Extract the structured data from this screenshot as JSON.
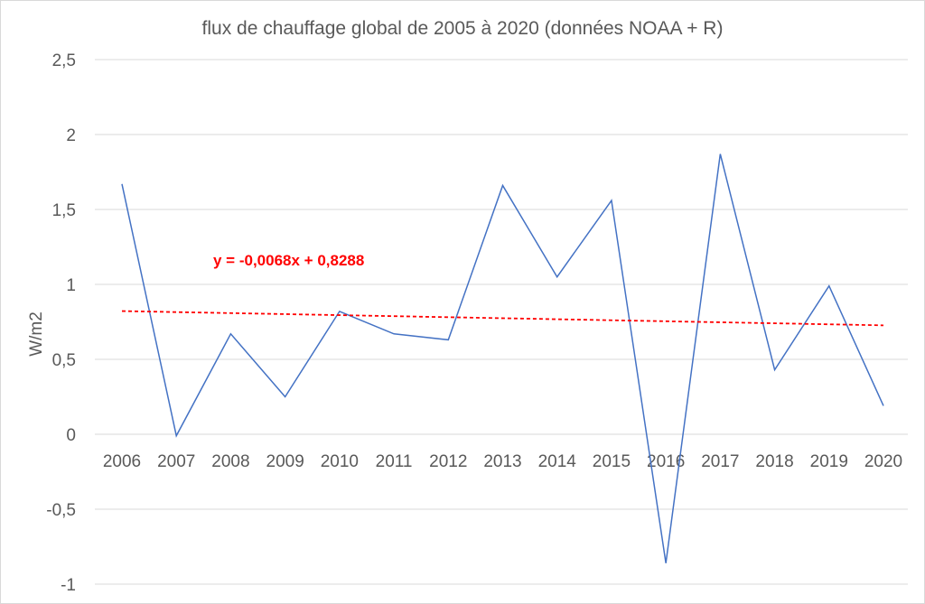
{
  "chart_data": {
    "type": "line",
    "title": "flux de chauffage global de 2005 à 2020 (données NOAA + R)",
    "xlabel": "",
    "ylabel": "W/m2",
    "categories": [
      "2006",
      "2007",
      "2008",
      "2009",
      "2010",
      "2011",
      "2012",
      "2013",
      "2014",
      "2015",
      "2016",
      "2017",
      "2018",
      "2019",
      "2020"
    ],
    "series": [
      {
        "name": "flux",
        "color": "#4472c4",
        "values": [
          1.67,
          -0.01,
          0.67,
          0.25,
          0.82,
          0.67,
          0.63,
          1.66,
          1.05,
          1.56,
          -0.86,
          1.87,
          0.43,
          0.99,
          0.19
        ]
      }
    ],
    "trendline": {
      "slope": -0.0068,
      "intercept": 0.8288,
      "color": "#ff0000",
      "label": "y = -0,0068x + 0,8288"
    },
    "ylim": [
      -1,
      2.5
    ],
    "yticks": [
      2.5,
      2,
      1.5,
      1,
      0.5,
      0,
      -0.5,
      -1
    ],
    "ytick_labels": [
      "2,5",
      "2",
      "1,5",
      "1",
      "0,5",
      "0",
      "-0,5",
      "-1"
    ],
    "grid": true,
    "legend": "none"
  }
}
